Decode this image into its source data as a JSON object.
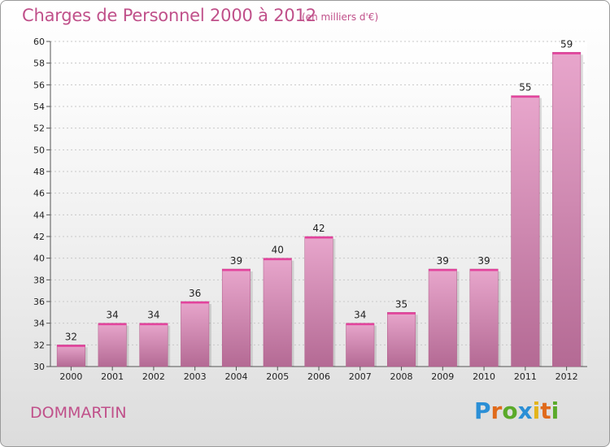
{
  "header": {
    "title": "Charges de Personnel 2000 à 2012",
    "subtitle": "(en milliers d'€)"
  },
  "footer": {
    "commune": "DOMMARTIN",
    "logo_text": "Proxiti"
  },
  "colors": {
    "accent": "#c0508a",
    "bar_top": "#e8a6cc",
    "bar_bottom": "#b46a94"
  },
  "chart_data": {
    "type": "bar",
    "categories": [
      "2000",
      "2001",
      "2002",
      "2003",
      "2004",
      "2005",
      "2006",
      "2007",
      "2008",
      "2009",
      "2010",
      "2011",
      "2012"
    ],
    "values": [
      32,
      34,
      34,
      36,
      39,
      40,
      42,
      34,
      35,
      39,
      39,
      55,
      59
    ],
    "ylim": [
      30,
      60
    ],
    "yticks": [
      30,
      32,
      34,
      36,
      38,
      40,
      42,
      44,
      46,
      48,
      50,
      52,
      54,
      56,
      58,
      60
    ],
    "grid": true,
    "legend": "none"
  }
}
